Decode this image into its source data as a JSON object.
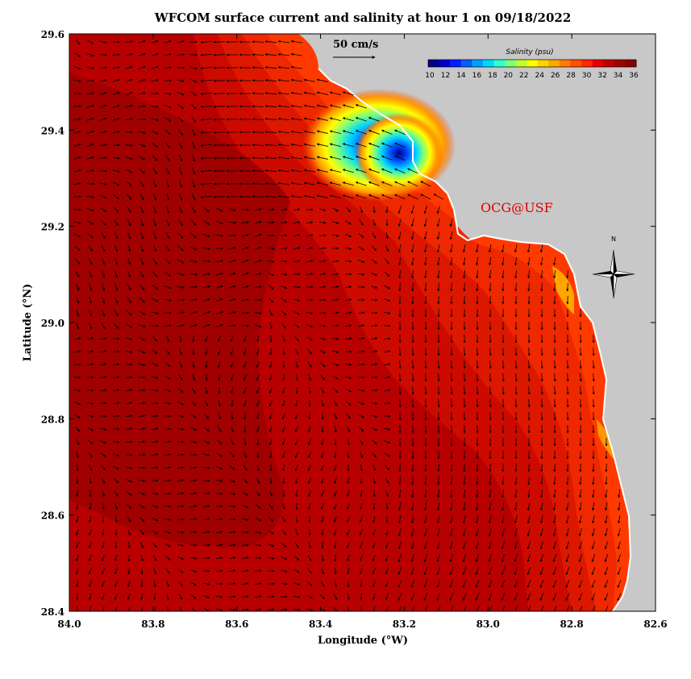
{
  "title": "WFCOM surface current and salinity at hour 1 on 09/18/2022",
  "xlabel": "Longitude (°W)",
  "ylabel": "Latitude (°N)",
  "x_ticks": [
    "84.0",
    "83.8",
    "83.6",
    "83.4",
    "83.2",
    "83.0",
    "82.8",
    "82.6"
  ],
  "y_ticks": [
    "29.6",
    "29.4",
    "29.2",
    "29.0",
    "28.8",
    "28.6",
    "28.4"
  ],
  "reference_vector": "50 cm/s",
  "colorbar": {
    "title": "Salinity (psu)",
    "labels": [
      "10",
      "12",
      "14",
      "16",
      "18",
      "20",
      "22",
      "24",
      "26",
      "28",
      "30",
      "32",
      "34",
      "36"
    ]
  },
  "credit": "OCG@USF",
  "compass": {
    "label": "N"
  },
  "colors": {
    "land": "#c8c8c8",
    "high_salinity": "#8b0000",
    "credit": "#e00000"
  },
  "chart_data": {
    "type": "heatmap",
    "variable": "surface salinity (psu) with current vectors",
    "x_range_degW": [
      84.0,
      82.6
    ],
    "y_range_degN": [
      28.4,
      29.6
    ],
    "color_range_psu": [
      10,
      36
    ],
    "features": {
      "min_salinity_psu": 10,
      "min_location_degW_degN": [
        83.22,
        29.33
      ]
    }
  }
}
